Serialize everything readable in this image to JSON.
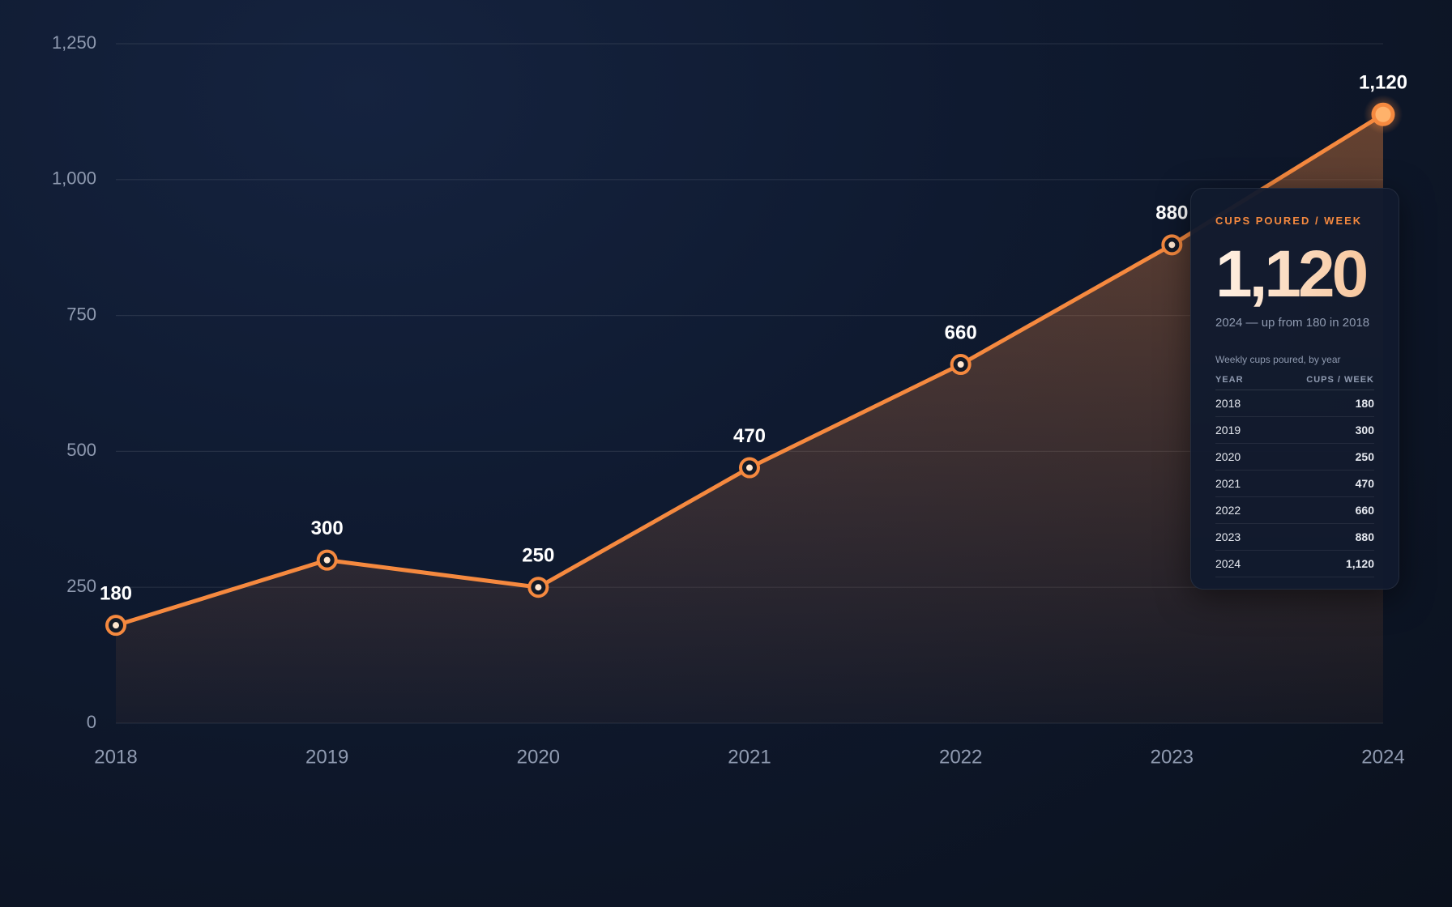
{
  "chart_data": {
    "type": "line",
    "categories": [
      "2018",
      "2019",
      "2020",
      "2021",
      "2022",
      "2023",
      "2024"
    ],
    "series": [
      {
        "name": "Cups poured / week",
        "color": "#f5893f",
        "values": [
          180,
          300,
          250,
          470,
          660,
          880,
          1120
        ],
        "value_labels": [
          "180",
          "300",
          "250",
          "470",
          "660",
          "880",
          "1,120"
        ]
      }
    ],
    "ylim": [
      0,
      1250
    ],
    "yticks": [
      0,
      250,
      500,
      750,
      {
        "value": 1000,
        "label": "1,000"
      },
      {
        "value": 1250,
        "label": "1,250"
      }
    ],
    "grid": true
  },
  "panel": {
    "title": "CUPS POURED / WEEK",
    "value": "1,120",
    "note": "2024 — up from 180 in 2018",
    "table": {
      "caption": "Weekly cups poured, by year",
      "columns": [
        "YEAR",
        "CUPS / WEEK"
      ],
      "rows": [
        [
          "2018",
          "180"
        ],
        [
          "2019",
          "300"
        ],
        [
          "2020",
          "250"
        ],
        [
          "2021",
          "470"
        ],
        [
          "2022",
          "660"
        ],
        [
          "2023",
          "880"
        ],
        [
          "2024",
          "1,120"
        ]
      ]
    }
  }
}
